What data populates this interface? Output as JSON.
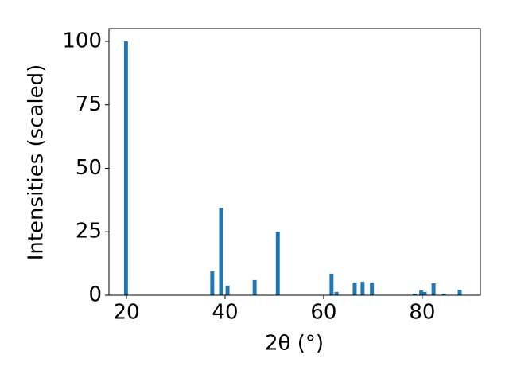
{
  "chart_data": {
    "type": "bar",
    "x": [
      19.9,
      37.4,
      39.2,
      40.5,
      46.0,
      50.7,
      61.6,
      62.6,
      66.3,
      67.9,
      69.8,
      78.5,
      79.8,
      80.5,
      82.3,
      84.4,
      87.6
    ],
    "values": [
      100,
      9.4,
      34.5,
      3.8,
      6,
      25,
      8.5,
      1.3,
      5,
      5.3,
      5,
      0.6,
      1.9,
      1.3,
      4.7,
      0.6,
      2.2
    ],
    "color": "#1f77b4",
    "xlabel": "2θ (°)",
    "ylabel": "Intensities (scaled)",
    "xlim": [
      16.45,
      91.8
    ],
    "xticks": [
      20,
      40,
      60,
      80
    ],
    "ylim": [
      0,
      105
    ],
    "yticks": [
      0,
      25,
      50,
      75,
      100
    ]
  }
}
